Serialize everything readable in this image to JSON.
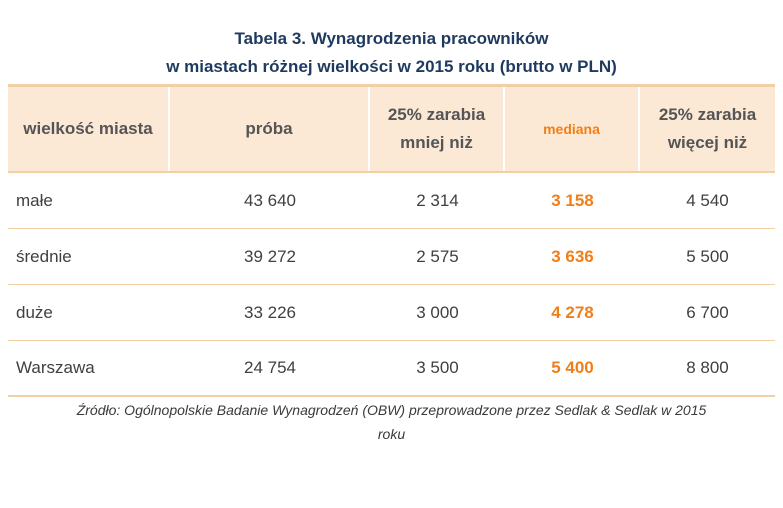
{
  "title": {
    "line1": "Tabela 3. Wynagrodzenia pracowników",
    "line2": "w miastach różnej wielkości w 2015 roku (brutto w PLN)"
  },
  "colors": {
    "title": "#1f3a5f",
    "accent": "#f07f1a",
    "header_bg": "#fbe9d6",
    "border": "#f3cfa6"
  },
  "table": {
    "headers": {
      "city_size": "wielkość miasta",
      "sample": "próba",
      "lower25_line1": "25% zarabia",
      "lower25_line2": "mniej niż",
      "median": "mediana",
      "upper25_line1": "25% zarabia",
      "upper25_line2": "więcej niż"
    },
    "rows": [
      {
        "city": "małe",
        "sample": "43 640",
        "lower25": "2 314",
        "median": "3 158",
        "upper25": "4 540"
      },
      {
        "city": "średnie",
        "sample": "39 272",
        "lower25": "2 575",
        "median": "3 636",
        "upper25": "5 500"
      },
      {
        "city": "duże",
        "sample": "33 226",
        "lower25": "3 000",
        "median": "4 278",
        "upper25": "6 700"
      },
      {
        "city": "Warszawa",
        "sample": "24 754",
        "lower25": "3 500",
        "median": "5 400",
        "upper25": "8 800"
      }
    ]
  },
  "source": {
    "line1": "Źródło: Ogólnopolskie Badanie Wynagrodzeń (OBW) przeprowadzone przez Sedlak & Sedlak w 2015",
    "line2": "roku"
  }
}
